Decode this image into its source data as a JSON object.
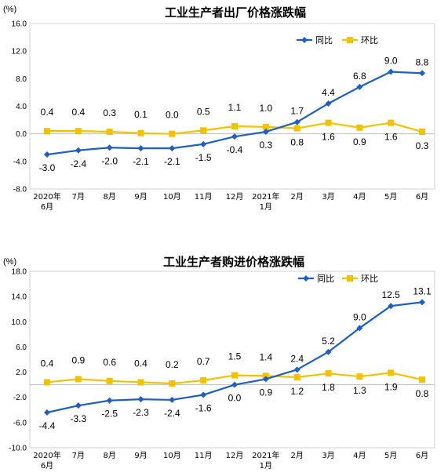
{
  "chart_data": [
    {
      "type": "line",
      "title": "工业生产者出厂价格涨跌幅",
      "unit": "(%)",
      "ylim": [
        -8.0,
        16.0
      ],
      "yticks": [
        "16.0",
        "12.0",
        "8.0",
        "4.0",
        "0.0",
        "-4.0",
        "-8.0"
      ],
      "categories": [
        "2020年6月",
        "7月",
        "8月",
        "9月",
        "10月",
        "11月",
        "12月",
        "2021年1月",
        "2月",
        "3月",
        "4月",
        "5月",
        "6月"
      ],
      "x_tick_lines": [
        [
          "2020年",
          "6月"
        ],
        [
          "7月"
        ],
        [
          "8月"
        ],
        [
          "9月"
        ],
        [
          "10月"
        ],
        [
          "11月"
        ],
        [
          "12月"
        ],
        [
          "2021年",
          "1月"
        ],
        [
          "2月"
        ],
        [
          "3月"
        ],
        [
          "4月"
        ],
        [
          "5月"
        ],
        [
          "6月"
        ]
      ],
      "legend_position": "top-right",
      "grid": false,
      "series": [
        {
          "name": "同比",
          "color": "#1f5fbf",
          "values": [
            -3.0,
            -2.4,
            -2.0,
            -2.1,
            -2.1,
            -1.5,
            -0.4,
            0.3,
            1.7,
            4.4,
            6.8,
            9.0,
            8.8
          ],
          "labels": [
            "-3.0",
            "-2.4",
            "-2.0",
            "-2.1",
            "-2.1",
            "-1.5",
            "-0.4",
            "0.3",
            "1.7",
            "4.4",
            "6.8",
            "9.0",
            "8.8"
          ],
          "label_side": [
            "below",
            "below",
            "below",
            "below",
            "below",
            "below",
            "below",
            "below",
            "above",
            "above",
            "above",
            "above",
            "above"
          ]
        },
        {
          "name": "环比",
          "color": "#f2c200",
          "values": [
            0.4,
            0.4,
            0.3,
            0.1,
            0.0,
            0.5,
            1.1,
            1.0,
            0.8,
            1.6,
            0.9,
            1.6,
            0.3
          ],
          "labels": [
            "0.4",
            "0.4",
            "0.3",
            "0.1",
            "0.0",
            "0.5",
            "1.1",
            "1.0",
            "0.8",
            "1.6",
            "0.9",
            "1.6",
            "0.3"
          ],
          "label_side": [
            "above",
            "above",
            "above",
            "above",
            "above",
            "above",
            "above",
            "above",
            "below",
            "below",
            "below",
            "below",
            "below"
          ]
        }
      ]
    },
    {
      "type": "line",
      "title": "工业生产者购进价格涨跌幅",
      "unit": "(%)",
      "ylim": [
        -10.0,
        18.0
      ],
      "yticks": [
        "18.0",
        "14.0",
        "10.0",
        "6.0",
        "2.0",
        "-2.0",
        "-6.0",
        "-10.0"
      ],
      "categories": [
        "2020年6月",
        "7月",
        "8月",
        "9月",
        "10月",
        "11月",
        "12月",
        "2021年1月",
        "2月",
        "3月",
        "4月",
        "5月",
        "6月"
      ],
      "x_tick_lines": [
        [
          "2020年",
          "6月"
        ],
        [
          "7月"
        ],
        [
          "8月"
        ],
        [
          "9月"
        ],
        [
          "10月"
        ],
        [
          "11月"
        ],
        [
          "12月"
        ],
        [
          "2021年",
          "1月"
        ],
        [
          "2月"
        ],
        [
          "3月"
        ],
        [
          "4月"
        ],
        [
          "5月"
        ],
        [
          "6月"
        ]
      ],
      "legend_position": "top-right",
      "grid": false,
      "series": [
        {
          "name": "同比",
          "color": "#1f5fbf",
          "values": [
            -4.4,
            -3.3,
            -2.5,
            -2.3,
            -2.4,
            -1.6,
            0.0,
            0.9,
            2.4,
            5.2,
            9.0,
            12.5,
            13.1
          ],
          "labels": [
            "-4.4",
            "-3.3",
            "-2.5",
            "-2.3",
            "-2.4",
            "-1.6",
            "0.0",
            "0.9",
            "2.4",
            "5.2",
            "9.0",
            "12.5",
            "13.1"
          ],
          "label_side": [
            "below",
            "below",
            "below",
            "below",
            "below",
            "below",
            "below",
            "below",
            "above",
            "above",
            "above",
            "above",
            "above"
          ]
        },
        {
          "name": "环比",
          "color": "#f2c200",
          "values": [
            0.4,
            0.9,
            0.6,
            0.4,
            0.2,
            0.7,
            1.5,
            1.4,
            1.2,
            1.8,
            1.3,
            1.9,
            0.8
          ],
          "labels": [
            "0.4",
            "0.9",
            "0.6",
            "0.4",
            "0.2",
            "0.7",
            "1.5",
            "1.4",
            "1.2",
            "1.8",
            "1.3",
            "1.9",
            "0.8"
          ],
          "label_side": [
            "above",
            "above",
            "above",
            "above",
            "above",
            "above",
            "above",
            "above",
            "below",
            "below",
            "below",
            "below",
            "below"
          ]
        }
      ]
    }
  ]
}
